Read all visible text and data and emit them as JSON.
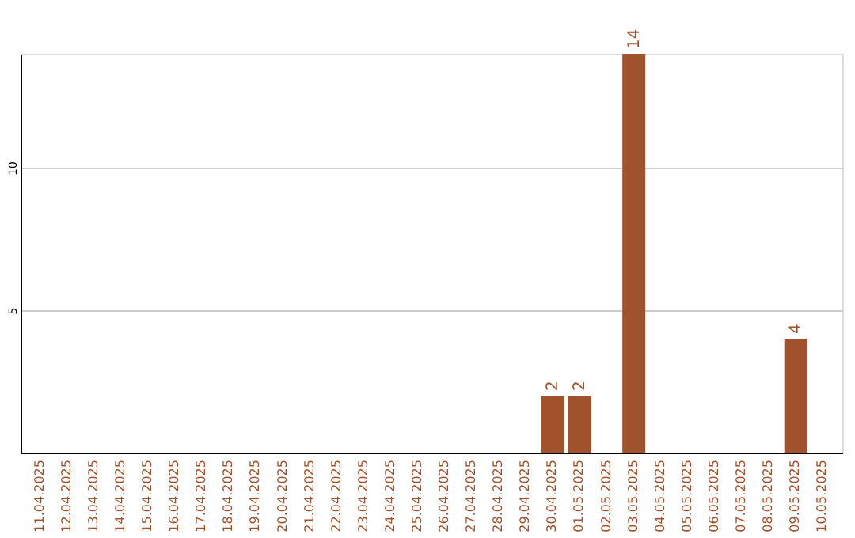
{
  "chart_data": {
    "type": "bar",
    "categories": [
      "11.04.2025",
      "12.04.2025",
      "13.04.2025",
      "14.04.2025",
      "15.04.2025",
      "16.04.2025",
      "17.04.2025",
      "18.04.2025",
      "19.04.2025",
      "20.04.2025",
      "21.04.2025",
      "22.04.2025",
      "23.04.2025",
      "24.04.2025",
      "25.04.2025",
      "26.04.2025",
      "27.04.2025",
      "28.04.2025",
      "29.04.2025",
      "30.04.2025",
      "01.05.2025",
      "02.05.2025",
      "03.05.2025",
      "04.05.2025",
      "05.05.2025",
      "06.05.2025",
      "07.05.2025",
      "08.05.2025",
      "09.05.2025",
      "10.05.2025"
    ],
    "values": [
      0,
      0,
      0,
      0,
      0,
      0,
      0,
      0,
      0,
      0,
      0,
      0,
      0,
      0,
      0,
      0,
      0,
      0,
      0,
      2,
      2,
      0,
      14,
      0,
      0,
      0,
      0,
      0,
      4,
      0
    ],
    "value_labels": [
      null,
      null,
      null,
      null,
      null,
      null,
      null,
      null,
      null,
      null,
      null,
      null,
      null,
      null,
      null,
      null,
      null,
      null,
      null,
      "2",
      "2",
      null,
      "14",
      null,
      null,
      null,
      null,
      null,
      "4",
      null
    ],
    "color": "#a0522d",
    "ylim": [
      0,
      14
    ],
    "yticks": [
      5,
      10
    ],
    "grid": "y"
  }
}
